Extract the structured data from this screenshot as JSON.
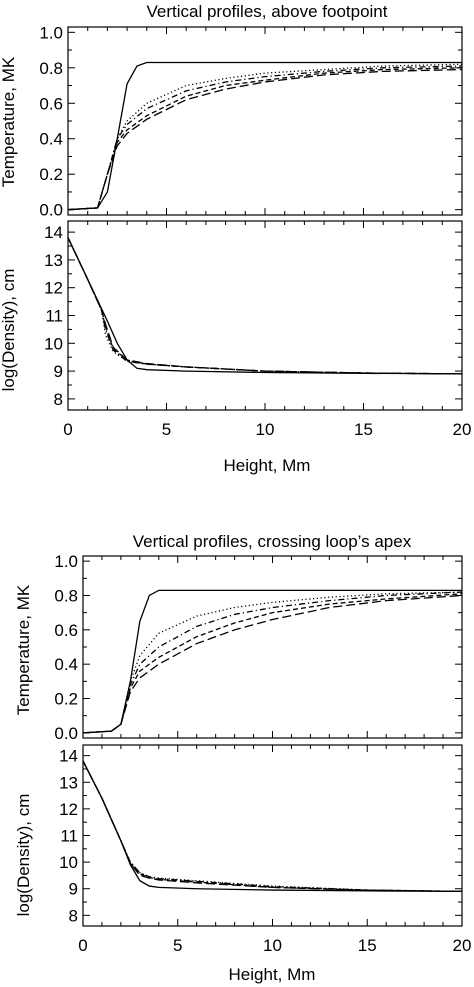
{
  "chart_data": [
    {
      "type": "line",
      "figure": "top",
      "title": "Vertical profiles, above footpoint",
      "xlabel": "",
      "ylabel": "Temperature, MK",
      "xlim": [
        0,
        20
      ],
      "ylim": [
        -0.03,
        1.03
      ],
      "x_ticks": [],
      "y_ticks": [
        0.0,
        0.2,
        0.4,
        0.6,
        0.8,
        1.0
      ],
      "y_tick_labels": [
        "0.0",
        "0.2",
        "0.4",
        "0.6",
        "0.8",
        "1.0"
      ],
      "series": [
        {
          "dash": "solid",
          "x": [
            0,
            1.5,
            2,
            2.5,
            3,
            3.5,
            4,
            5,
            10,
            15,
            20
          ],
          "y": [
            0,
            0.01,
            0.1,
            0.4,
            0.71,
            0.81,
            0.83,
            0.83,
            0.83,
            0.83,
            0.83
          ]
        },
        {
          "dash": "dotted",
          "x": [
            0,
            1.5,
            2,
            2.5,
            3,
            4,
            6,
            8,
            10,
            13,
            16,
            20
          ],
          "y": [
            0,
            0.01,
            0.2,
            0.4,
            0.5,
            0.6,
            0.7,
            0.74,
            0.77,
            0.79,
            0.81,
            0.82
          ]
        },
        {
          "dash": "dashdot",
          "x": [
            0,
            1.5,
            2,
            2.5,
            3,
            4,
            6,
            8,
            10,
            13,
            16,
            20
          ],
          "y": [
            0,
            0.01,
            0.2,
            0.4,
            0.48,
            0.57,
            0.67,
            0.72,
            0.75,
            0.78,
            0.8,
            0.81
          ]
        },
        {
          "dash": "dashed",
          "x": [
            0,
            1.5,
            2,
            2.5,
            3,
            4,
            6,
            8,
            10,
            13,
            16,
            20
          ],
          "y": [
            0,
            0.01,
            0.2,
            0.38,
            0.45,
            0.53,
            0.64,
            0.7,
            0.73,
            0.77,
            0.79,
            0.8
          ]
        },
        {
          "dash": "longdash",
          "x": [
            0,
            1.5,
            2,
            2.5,
            3,
            4,
            6,
            8,
            10,
            13,
            16,
            20
          ],
          "y": [
            0,
            0.01,
            0.2,
            0.36,
            0.43,
            0.51,
            0.62,
            0.68,
            0.72,
            0.76,
            0.78,
            0.79
          ]
        }
      ]
    },
    {
      "type": "line",
      "figure": "top",
      "title": "",
      "xlabel": "Height, Mm",
      "ylabel": "log(Density), cm",
      "xlim": [
        0,
        20
      ],
      "ylim": [
        7.6,
        14.4
      ],
      "x_ticks": [
        0,
        5,
        10,
        15,
        20
      ],
      "x_tick_labels": [
        "0",
        "5",
        "10",
        "15",
        "20"
      ],
      "y_ticks": [
        8,
        9,
        10,
        11,
        12,
        13,
        14
      ],
      "y_tick_labels": [
        "8",
        "9",
        "10",
        "11",
        "12",
        "13",
        "14"
      ],
      "series": [
        {
          "dash": "solid",
          "x": [
            0,
            1,
            2,
            2.5,
            3,
            3.5,
            4,
            6,
            10,
            15,
            20
          ],
          "y": [
            13.8,
            12.3,
            10.8,
            10.0,
            9.4,
            9.1,
            9.05,
            9.0,
            8.95,
            8.92,
            8.9
          ]
        },
        {
          "dash": "dotted",
          "x": [
            0,
            1,
            1.7,
            1.9,
            2.3,
            3,
            4,
            6,
            10,
            15,
            20
          ],
          "y": [
            13.8,
            12.3,
            11.2,
            10.3,
            9.7,
            9.35,
            9.25,
            9.15,
            9.0,
            8.93,
            8.9
          ]
        },
        {
          "dash": "dashdot",
          "x": [
            0,
            1,
            1.7,
            1.9,
            2.3,
            3,
            4,
            6,
            10,
            15,
            20
          ],
          "y": [
            13.8,
            12.3,
            11.2,
            10.5,
            9.75,
            9.35,
            9.25,
            9.15,
            9.0,
            8.93,
            8.9
          ]
        },
        {
          "dash": "dashed",
          "x": [
            0,
            1,
            1.7,
            1.9,
            2.3,
            3,
            4,
            6,
            10,
            15,
            20
          ],
          "y": [
            13.8,
            12.3,
            11.2,
            10.6,
            9.8,
            9.4,
            9.25,
            9.15,
            9.0,
            8.93,
            8.9
          ]
        },
        {
          "dash": "longdash",
          "x": [
            0,
            1,
            1.7,
            1.9,
            2.3,
            3,
            4,
            6,
            10,
            15,
            20
          ],
          "y": [
            13.8,
            12.3,
            11.2,
            10.7,
            9.85,
            9.4,
            9.27,
            9.15,
            9.0,
            8.93,
            8.9
          ]
        }
      ]
    },
    {
      "type": "line",
      "figure": "bottom",
      "title": "Vertical profiles, crossing loop’s apex",
      "xlabel": "",
      "ylabel": "Temperature, MK",
      "xlim": [
        0,
        20
      ],
      "ylim": [
        -0.03,
        1.03
      ],
      "x_ticks": [],
      "y_ticks": [
        0.0,
        0.2,
        0.4,
        0.6,
        0.8,
        1.0
      ],
      "y_tick_labels": [
        "0.0",
        "0.2",
        "0.4",
        "0.6",
        "0.8",
        "1.0"
      ],
      "series": [
        {
          "dash": "solid",
          "x": [
            0,
            1.5,
            2,
            2.5,
            3,
            3.5,
            4,
            5,
            10,
            15,
            20
          ],
          "y": [
            0,
            0.01,
            0.05,
            0.3,
            0.65,
            0.8,
            0.83,
            0.83,
            0.83,
            0.83,
            0.83
          ]
        },
        {
          "dash": "dotted",
          "x": [
            0,
            1.5,
            2,
            2.5,
            3,
            4,
            6,
            8,
            10,
            13,
            16,
            20
          ],
          "y": [
            0,
            0.01,
            0.05,
            0.3,
            0.45,
            0.58,
            0.68,
            0.73,
            0.76,
            0.79,
            0.81,
            0.82
          ]
        },
        {
          "dash": "dashdot",
          "x": [
            0,
            1.5,
            2,
            2.5,
            3,
            4,
            6,
            8,
            10,
            13,
            16,
            20
          ],
          "y": [
            0,
            0.01,
            0.05,
            0.28,
            0.4,
            0.5,
            0.62,
            0.69,
            0.73,
            0.77,
            0.8,
            0.82
          ]
        },
        {
          "dash": "dashed",
          "x": [
            0,
            1.5,
            2,
            2.5,
            3,
            4,
            6,
            8,
            10,
            13,
            16,
            20
          ],
          "y": [
            0,
            0.01,
            0.05,
            0.26,
            0.36,
            0.44,
            0.56,
            0.64,
            0.7,
            0.75,
            0.78,
            0.81
          ]
        },
        {
          "dash": "longdash",
          "x": [
            0,
            1.5,
            2,
            2.5,
            3,
            4,
            6,
            8,
            10,
            13,
            16,
            20
          ],
          "y": [
            0,
            0.01,
            0.05,
            0.24,
            0.32,
            0.4,
            0.52,
            0.6,
            0.66,
            0.73,
            0.77,
            0.8
          ]
        }
      ]
    },
    {
      "type": "line",
      "figure": "bottom",
      "title": "",
      "xlabel": "Height, Mm",
      "ylabel": "log(Density), cm",
      "xlim": [
        0,
        20
      ],
      "ylim": [
        7.6,
        14.4
      ],
      "x_ticks": [
        0,
        5,
        10,
        15,
        20
      ],
      "x_tick_labels": [
        "0",
        "5",
        "10",
        "15",
        "20"
      ],
      "y_ticks": [
        8,
        9,
        10,
        11,
        12,
        13,
        14
      ],
      "y_tick_labels": [
        "8",
        "9",
        "10",
        "11",
        "12",
        "13",
        "14"
      ],
      "series": [
        {
          "dash": "solid",
          "x": [
            0,
            1,
            2,
            2.5,
            3,
            3.5,
            4,
            6,
            10,
            15,
            20
          ],
          "y": [
            13.8,
            12.4,
            10.8,
            9.9,
            9.3,
            9.1,
            9.05,
            9.0,
            8.95,
            8.92,
            8.9
          ]
        },
        {
          "dash": "dotted",
          "x": [
            0,
            1,
            2,
            2.5,
            3,
            3.5,
            4,
            6,
            10,
            15,
            20
          ],
          "y": [
            13.8,
            12.4,
            10.8,
            10.0,
            9.6,
            9.45,
            9.4,
            9.3,
            9.1,
            8.95,
            8.9
          ]
        },
        {
          "dash": "dashdot",
          "x": [
            0,
            1,
            2,
            2.5,
            3,
            3.5,
            4,
            6,
            10,
            15,
            20
          ],
          "y": [
            13.8,
            12.4,
            10.8,
            10.0,
            9.6,
            9.45,
            9.38,
            9.28,
            9.08,
            8.95,
            8.9
          ]
        },
        {
          "dash": "dashed",
          "x": [
            0,
            1,
            2,
            2.5,
            3,
            3.5,
            4,
            6,
            10,
            15,
            20
          ],
          "y": [
            13.8,
            12.4,
            10.8,
            9.95,
            9.55,
            9.42,
            9.35,
            9.25,
            9.05,
            8.95,
            8.9
          ]
        },
        {
          "dash": "longdash",
          "x": [
            0,
            1,
            2,
            2.5,
            3,
            3.5,
            4,
            6,
            10,
            15,
            20
          ],
          "y": [
            13.8,
            12.4,
            10.8,
            9.95,
            9.5,
            9.4,
            9.33,
            9.22,
            9.05,
            8.94,
            8.9
          ]
        }
      ]
    }
  ]
}
